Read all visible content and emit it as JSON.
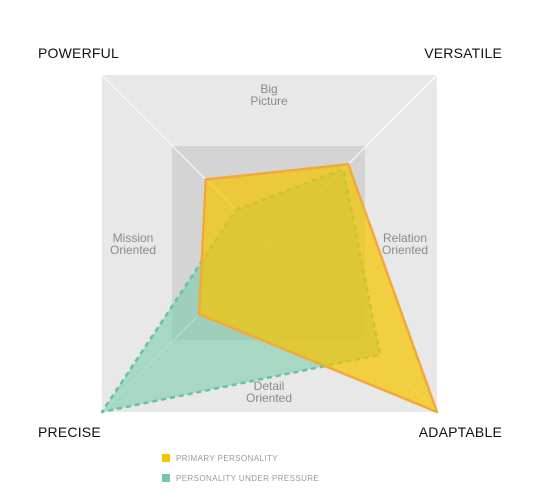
{
  "chart_data": {
    "type": "radar",
    "corners": {
      "top_left": "POWERFUL",
      "top_right": "VERSATILE",
      "bottom_left": "PRECISE",
      "bottom_right": "ADAPTABLE"
    },
    "sides": {
      "top": [
        "Big",
        "Picture"
      ],
      "right": [
        "Relation",
        "Oriented"
      ],
      "bottom": [
        "Detail",
        "Oriented"
      ],
      "left": [
        "Mission",
        "Oriented"
      ]
    },
    "axis_order": [
      "POWERFUL",
      "VERSATILE",
      "ADAPTABLE",
      "PRECISE"
    ],
    "scale_max": 1,
    "series": [
      {
        "name": "PRIMARY PERSONALITY",
        "color": "#f5c400",
        "stroke": "#f2a93b",
        "values": [
          0.38,
          0.47,
          1.0,
          0.42
        ]
      },
      {
        "name": "PERSONALITY UNDER PRESSURE",
        "color": "#6fcaa4",
        "stroke": "#66c39c",
        "values": [
          0.2,
          0.44,
          0.66,
          1.0
        ]
      }
    ]
  }
}
